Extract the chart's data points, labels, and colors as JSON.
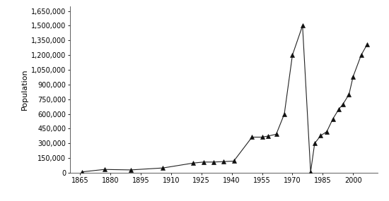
{
  "years": [
    1866,
    1877,
    1890,
    1906,
    1921,
    1926,
    1931,
    1936,
    1941,
    1950,
    1955,
    1958,
    1962,
    1966,
    1970,
    1975,
    1979,
    1981,
    1984,
    1987,
    1990,
    1993,
    1995,
    1998,
    2000,
    2004,
    2007
  ],
  "population": [
    10000,
    35000,
    30000,
    50000,
    100000,
    110000,
    110000,
    115000,
    120000,
    364000,
    364000,
    375000,
    394000,
    600000,
    1200000,
    1500000,
    10000,
    300000,
    380000,
    420000,
    550000,
    650000,
    700000,
    800000,
    980000,
    1200000,
    1310000
  ],
  "ylabel": "Population",
  "yticks": [
    0,
    150000,
    300000,
    450000,
    600000,
    750000,
    900000,
    1050000,
    1200000,
    1350000,
    1500000,
    1650000
  ],
  "ytick_labels": [
    "0",
    "150,000",
    "300,000",
    "450,000",
    "600,000",
    "750,000",
    "900,000",
    "1,050,000",
    "1,200,000",
    "1,350,000",
    "1,500,000",
    "1,650,000"
  ],
  "xticks": [
    1865,
    1880,
    1895,
    1910,
    1925,
    1940,
    1955,
    1970,
    1985,
    2000
  ],
  "xlim": [
    1860,
    2012
  ],
  "ylim": [
    0,
    1700000
  ],
  "line_color": "#222222",
  "marker": "^",
  "marker_size": 4,
  "marker_color": "#111111",
  "background_color": "#ffffff",
  "ylabel_fontsize": 8,
  "tick_fontsize": 7
}
